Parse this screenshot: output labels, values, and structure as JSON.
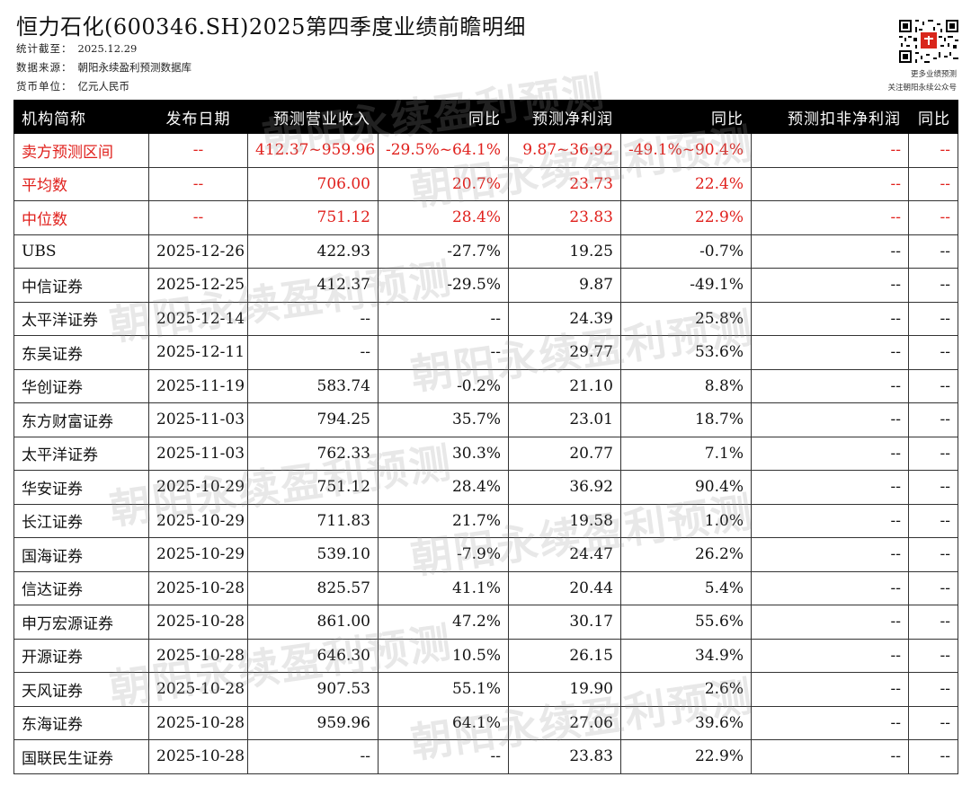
{
  "header": {
    "title": "恒力石化(600346.SH)2025第四季度业绩前瞻明细",
    "meta": [
      {
        "label": "统计截至：",
        "value": "2025.12.29"
      },
      {
        "label": "数据来源：",
        "value": "朝阳永续盈利预测数据库"
      },
      {
        "label": "货币单位：",
        "value": "亿元人民币"
      }
    ],
    "qr_caption_1": "更多业绩预测",
    "qr_caption_2": "关注朝阳永续公众号"
  },
  "watermark": "朝阳永续盈利预测",
  "table": {
    "columns": [
      "机构简称",
      "发布日期",
      "预测营业收入",
      "同比",
      "预测净利润",
      "同比",
      "预测扣非净利润",
      "同比"
    ],
    "summary_rows": [
      [
        "卖方预测区间",
        "--",
        "412.37~959.96",
        "-29.5%~64.1%",
        "9.87~36.92",
        "-49.1%~90.4%",
        "--",
        "--"
      ],
      [
        "平均数",
        "--",
        "706.00",
        "20.7%",
        "23.73",
        "22.4%",
        "--",
        "--"
      ],
      [
        "中位数",
        "--",
        "751.12",
        "28.4%",
        "23.83",
        "22.9%",
        "--",
        "--"
      ]
    ],
    "rows": [
      [
        "UBS",
        "2025-12-26",
        "422.93",
        "-27.7%",
        "19.25",
        "-0.7%",
        "--",
        "--"
      ],
      [
        "中信证券",
        "2025-12-25",
        "412.37",
        "-29.5%",
        "9.87",
        "-49.1%",
        "--",
        "--"
      ],
      [
        "太平洋证券",
        "2025-12-14",
        "--",
        "--",
        "24.39",
        "25.8%",
        "--",
        "--"
      ],
      [
        "东吴证券",
        "2025-12-11",
        "--",
        "--",
        "29.77",
        "53.6%",
        "--",
        "--"
      ],
      [
        "华创证券",
        "2025-11-19",
        "583.74",
        "-0.2%",
        "21.10",
        "8.8%",
        "--",
        "--"
      ],
      [
        "东方财富证券",
        "2025-11-03",
        "794.25",
        "35.7%",
        "23.01",
        "18.7%",
        "--",
        "--"
      ],
      [
        "太平洋证券",
        "2025-11-03",
        "762.33",
        "30.3%",
        "20.77",
        "7.1%",
        "--",
        "--"
      ],
      [
        "华安证券",
        "2025-10-29",
        "751.12",
        "28.4%",
        "36.92",
        "90.4%",
        "--",
        "--"
      ],
      [
        "长江证券",
        "2025-10-29",
        "711.83",
        "21.7%",
        "19.58",
        "1.0%",
        "--",
        "--"
      ],
      [
        "国海证券",
        "2025-10-29",
        "539.10",
        "-7.9%",
        "24.47",
        "26.2%",
        "--",
        "--"
      ],
      [
        "信达证券",
        "2025-10-28",
        "825.57",
        "41.1%",
        "20.44",
        "5.4%",
        "--",
        "--"
      ],
      [
        "申万宏源证券",
        "2025-10-28",
        "861.00",
        "47.2%",
        "30.17",
        "55.6%",
        "--",
        "--"
      ],
      [
        "开源证券",
        "2025-10-28",
        "646.30",
        "10.5%",
        "26.15",
        "34.9%",
        "--",
        "--"
      ],
      [
        "天风证券",
        "2025-10-28",
        "907.53",
        "55.1%",
        "19.90",
        "2.6%",
        "--",
        "--"
      ],
      [
        "东海证券",
        "2025-10-28",
        "959.96",
        "64.1%",
        "27.06",
        "39.6%",
        "--",
        "--"
      ],
      [
        "国联民生证券",
        "2025-10-28",
        "--",
        "--",
        "23.83",
        "22.9%",
        "--",
        "--"
      ]
    ]
  },
  "colors": {
    "header_bg": "#000000",
    "header_text": "#ffffff",
    "summary_text": "#e0201c",
    "qr_accent": "#d9261c"
  }
}
